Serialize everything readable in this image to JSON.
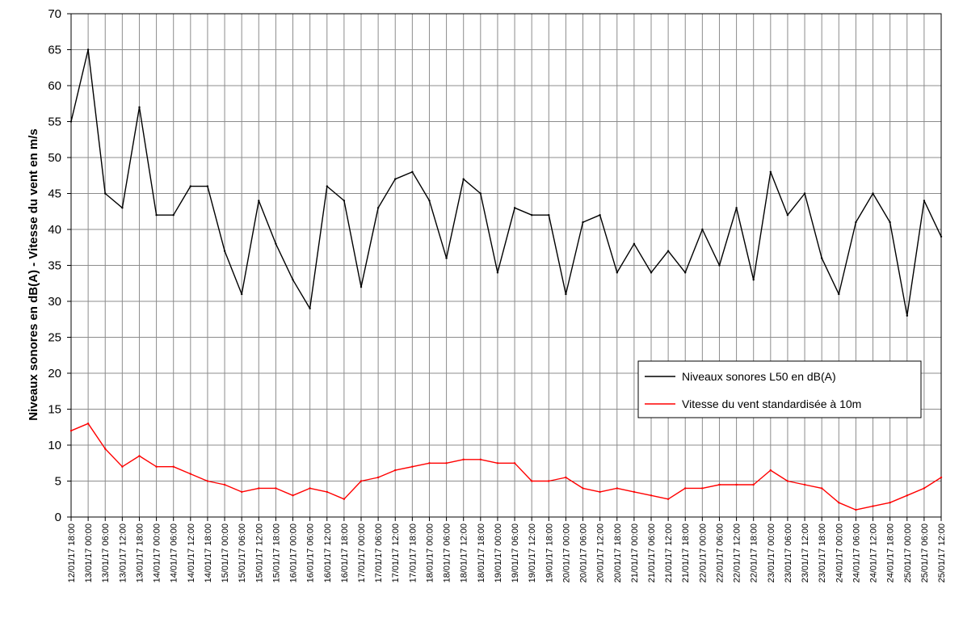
{
  "chart_data": {
    "type": "line",
    "ylabel": "Niveaux sonores en dB(A) - Vitesse du vent en m/s",
    "xlabel": "",
    "title": "",
    "ylim": [
      0,
      70
    ],
    "y_ticks": [
      "0",
      "5",
      "10",
      "15",
      "20",
      "25",
      "30",
      "35",
      "40",
      "45",
      "50",
      "55",
      "60",
      "65",
      "70"
    ],
    "x_ticks": [
      "12/01/17 18:00",
      "13/01/17 00:00",
      "13/01/17 06:00",
      "13/01/17 12:00",
      "13/01/17 18:00",
      "14/01/17 00:00",
      "14/01/17 06:00",
      "14/01/17 12:00",
      "14/01/17 18:00",
      "15/01/17 00:00",
      "15/01/17 06:00",
      "15/01/17 12:00",
      "15/01/17 18:00",
      "16/01/17 00:00",
      "16/01/17 06:00",
      "16/01/17 12:00",
      "16/01/17 18:00",
      "17/01/17 00:00",
      "17/01/17 06:00",
      "17/01/17 12:00",
      "17/01/17 18:00",
      "18/01/17 00:00",
      "18/01/17 06:00",
      "18/01/17 12:00",
      "18/01/17 18:00",
      "19/01/17 00:00",
      "19/01/17 06:00",
      "19/01/17 12:00",
      "19/01/17 18:00",
      "20/01/17 00:00",
      "20/01/17 06:00",
      "20/01/17 12:00",
      "20/01/17 18:00",
      "21/01/17 00:00",
      "21/01/17 06:00",
      "21/01/17 12:00",
      "21/01/17 18:00",
      "22/01/17 00:00",
      "22/01/17 06:00",
      "22/01/17 12:00",
      "22/01/17 18:00",
      "23/01/17 00:00",
      "23/01/17 06:00",
      "23/01/17 12:00",
      "23/01/17 18:00",
      "24/01/17 00:00",
      "24/01/17 06:00",
      "24/01/17 12:00",
      "24/01/17 18:00",
      "25/01/17 00:00",
      "25/01/17 06:00",
      "25/01/17 12:00"
    ],
    "x": [
      "12/01/17 18:00",
      "13/01/17 00:00",
      "13/01/17 06:00",
      "13/01/17 12:00",
      "13/01/17 18:00",
      "14/01/17 00:00",
      "14/01/17 06:00",
      "14/01/17 12:00",
      "14/01/17 18:00",
      "15/01/17 00:00",
      "15/01/17 06:00",
      "15/01/17 12:00",
      "15/01/17 18:00",
      "16/01/17 00:00",
      "16/01/17 06:00",
      "16/01/17 12:00",
      "16/01/17 18:00",
      "17/01/17 00:00",
      "17/01/17 06:00",
      "17/01/17 12:00",
      "17/01/17 18:00",
      "18/01/17 00:00",
      "18/01/17 06:00",
      "18/01/17 12:00",
      "18/01/17 18:00",
      "19/01/17 00:00",
      "19/01/17 06:00",
      "19/01/17 12:00",
      "19/01/17 18:00",
      "20/01/17 00:00",
      "20/01/17 06:00",
      "20/01/17 12:00",
      "20/01/17 18:00",
      "21/01/17 00:00",
      "21/01/17 06:00",
      "21/01/17 12:00",
      "21/01/17 18:00",
      "22/01/17 00:00",
      "22/01/17 06:00",
      "22/01/17 12:00",
      "22/01/17 18:00",
      "23/01/17 00:00",
      "23/01/17 06:00",
      "23/01/17 12:00",
      "23/01/17 18:00",
      "24/01/17 00:00",
      "24/01/17 06:00",
      "24/01/17 12:00",
      "24/01/17 18:00",
      "25/01/17 00:00",
      "25/01/17 06:00",
      "25/01/17 12:00"
    ],
    "series": [
      {
        "name": "Niveaux sonores L50 en dB(A)",
        "color": "#000000",
        "values": [
          55,
          65,
          45,
          43,
          57,
          42,
          42,
          46,
          46,
          37,
          31,
          44,
          38,
          33,
          29,
          46,
          44,
          32,
          43,
          47,
          48,
          44,
          36,
          47,
          45,
          34,
          43,
          42,
          42,
          31,
          41,
          42,
          34,
          38,
          34,
          37,
          34,
          40,
          35,
          43,
          33,
          48,
          42,
          45,
          36,
          31,
          41,
          45,
          41,
          28,
          44,
          39
        ]
      },
      {
        "name": "Vitesse du vent standardisée à 10m",
        "color": "#ff0000",
        "values": [
          12,
          13,
          9.5,
          7,
          8.5,
          7,
          7,
          6,
          5,
          4.5,
          3.5,
          4,
          4,
          3,
          4,
          3.5,
          2.5,
          5,
          5.5,
          6.5,
          7,
          7.5,
          7.5,
          8,
          8,
          7.5,
          7.5,
          5,
          5,
          5.5,
          4,
          3.5,
          4,
          3.5,
          3,
          2.5,
          4,
          4,
          4.5,
          4.5,
          4.5,
          6.5,
          5,
          4.5,
          4,
          2,
          1,
          1.5,
          2,
          3,
          4,
          5.5
        ]
      }
    ],
    "legend_position": "right",
    "grid": true
  }
}
